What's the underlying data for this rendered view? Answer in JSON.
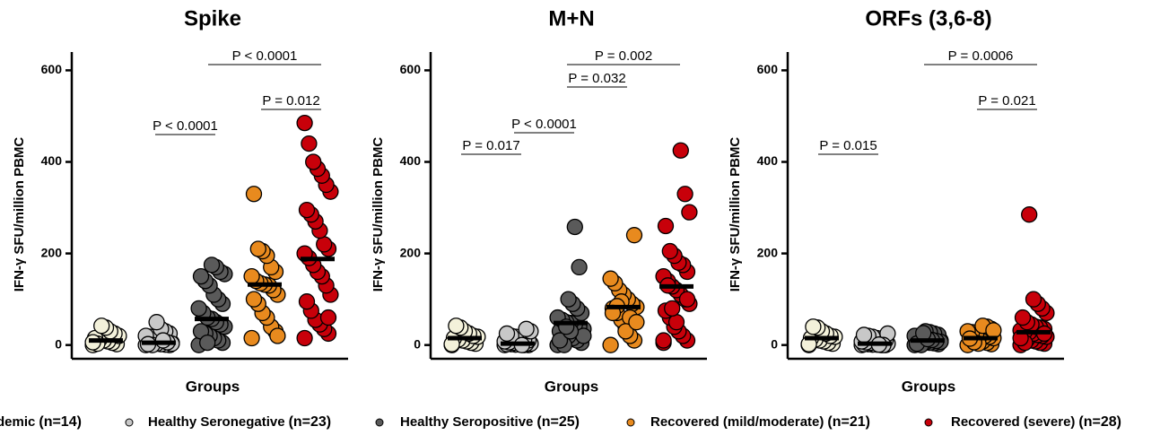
{
  "chart_data": [
    {
      "type": "scatter",
      "title": "Spike",
      "y_label": "IFN-γ SFU/million PBMC",
      "x_label": "Groups",
      "ylim": [
        -30,
        640
      ],
      "yticks": [
        0,
        200,
        400,
        600
      ],
      "annotations": [
        "P < 0.0001",
        "P = 0.012",
        "P < 0.0001"
      ],
      "series": [
        {
          "color": "#f3f1da",
          "median": 10,
          "values": [
            0,
            2,
            5,
            8,
            10,
            12,
            15,
            20,
            25,
            30,
            38,
            42,
            3,
            6
          ]
        },
        {
          "color": "#c8c8c8",
          "median": 5,
          "values": [
            0,
            0,
            1,
            2,
            3,
            4,
            5,
            5,
            8,
            10,
            12,
            15,
            18,
            20,
            25,
            30,
            35,
            50,
            0,
            2,
            3,
            6,
            10
          ]
        },
        {
          "color": "#5a5a5a",
          "median": 57,
          "values": [
            0,
            5,
            10,
            15,
            20,
            25,
            30,
            40,
            45,
            50,
            57,
            60,
            70,
            80,
            90,
            100,
            110,
            130,
            140,
            150,
            155,
            160,
            170,
            175,
            5
          ]
        },
        {
          "color": "#e88a1e",
          "median": 132,
          "values": [
            15,
            30,
            40,
            60,
            70,
            90,
            100,
            110,
            120,
            130,
            132,
            135,
            140,
            150,
            160,
            170,
            195,
            205,
            210,
            330,
            20
          ]
        },
        {
          "color": "#c8000a",
          "median": 188,
          "values": [
            15,
            25,
            35,
            45,
            55,
            75,
            95,
            110,
            130,
            150,
            160,
            175,
            190,
            200,
            210,
            220,
            250,
            270,
            285,
            295,
            335,
            350,
            370,
            385,
            400,
            440,
            485,
            60
          ]
        }
      ]
    },
    {
      "type": "scatter",
      "title": "M+N",
      "y_label": "IFN-γ SFU/million PBMC",
      "x_label": "Groups",
      "ylim": [
        -30,
        640
      ],
      "yticks": [
        0,
        200,
        400,
        600
      ],
      "annotations": [
        "P = 0.002",
        "P = 0.032",
        "P < 0.0001",
        "P = 0.017"
      ],
      "series": [
        {
          "color": "#f3f1da",
          "median": 15,
          "values": [
            0,
            3,
            5,
            8,
            10,
            12,
            15,
            18,
            20,
            25,
            30,
            38,
            42,
            2
          ]
        },
        {
          "color": "#c8c8c8",
          "median": 3,
          "values": [
            0,
            0,
            0,
            1,
            1,
            2,
            2,
            3,
            3,
            4,
            5,
            5,
            6,
            8,
            10,
            12,
            15,
            18,
            20,
            25,
            30,
            35,
            0
          ]
        },
        {
          "color": "#5a5a5a",
          "median": 48,
          "values": [
            0,
            5,
            10,
            15,
            20,
            25,
            30,
            35,
            40,
            45,
            48,
            50,
            55,
            60,
            70,
            80,
            90,
            100,
            0,
            10,
            20,
            170,
            258,
            30,
            40
          ]
        },
        {
          "color": "#e88a1e",
          "median": 83,
          "values": [
            0,
            10,
            20,
            40,
            55,
            70,
            80,
            83,
            90,
            100,
            110,
            120,
            135,
            145,
            240,
            60,
            30,
            95,
            85,
            70,
            50
          ]
        },
        {
          "color": "#c8000a",
          "median": 128,
          "values": [
            5,
            10,
            20,
            30,
            40,
            60,
            75,
            90,
            100,
            110,
            120,
            128,
            140,
            150,
            160,
            175,
            180,
            195,
            205,
            260,
            290,
            330,
            425,
            50,
            80,
            130,
            10,
            100
          ]
        }
      ]
    },
    {
      "type": "scatter",
      "title": "ORFs (3,6-8)",
      "y_label": "IFN-γ SFU/million PBMC",
      "x_label": "Groups",
      "ylim": [
        -30,
        640
      ],
      "yticks": [
        0,
        200,
        400,
        600
      ],
      "annotations": [
        "P = 0.0006",
        "P = 0.021",
        "P = 0.015"
      ],
      "series": [
        {
          "color": "#f3f1da",
          "median": 15,
          "values": [
            0,
            3,
            5,
            8,
            10,
            12,
            15,
            18,
            20,
            25,
            30,
            38,
            40,
            2
          ]
        },
        {
          "color": "#c8c8c8",
          "median": 3,
          "values": [
            0,
            0,
            0,
            1,
            1,
            2,
            2,
            3,
            3,
            4,
            5,
            5,
            6,
            8,
            10,
            12,
            15,
            18,
            20,
            22,
            25,
            0,
            1
          ]
        },
        {
          "color": "#5a5a5a",
          "median": 10,
          "values": [
            0,
            2,
            4,
            5,
            6,
            8,
            10,
            10,
            12,
            14,
            15,
            16,
            18,
            20,
            22,
            25,
            28,
            30,
            0,
            3,
            7,
            9,
            11,
            13,
            26
          ]
        },
        {
          "color": "#e88a1e",
          "median": 15,
          "values": [
            0,
            2,
            5,
            8,
            10,
            12,
            15,
            15,
            18,
            20,
            22,
            25,
            28,
            30,
            35,
            40,
            42,
            3,
            6,
            14,
            32
          ]
        },
        {
          "color": "#c8000a",
          "median": 28,
          "values": [
            0,
            3,
            5,
            8,
            10,
            12,
            15,
            18,
            20,
            22,
            25,
            28,
            30,
            32,
            35,
            38,
            40,
            45,
            50,
            60,
            70,
            80,
            90,
            100,
            285,
            5,
            15,
            25
          ]
        }
      ]
    }
  ],
  "legend": [
    {
      "name": "demic",
      "count": "(n=14)"
    },
    {
      "name": "Healthy Seronegative",
      "count": "(n=23)"
    },
    {
      "name": "Healthy Seropositive",
      "count": "(n=25)"
    },
    {
      "name": "Recovered (mild/moderate)",
      "count": "(n=21)"
    },
    {
      "name": "Recovered (severe)",
      "count": "(n=28)"
    }
  ]
}
